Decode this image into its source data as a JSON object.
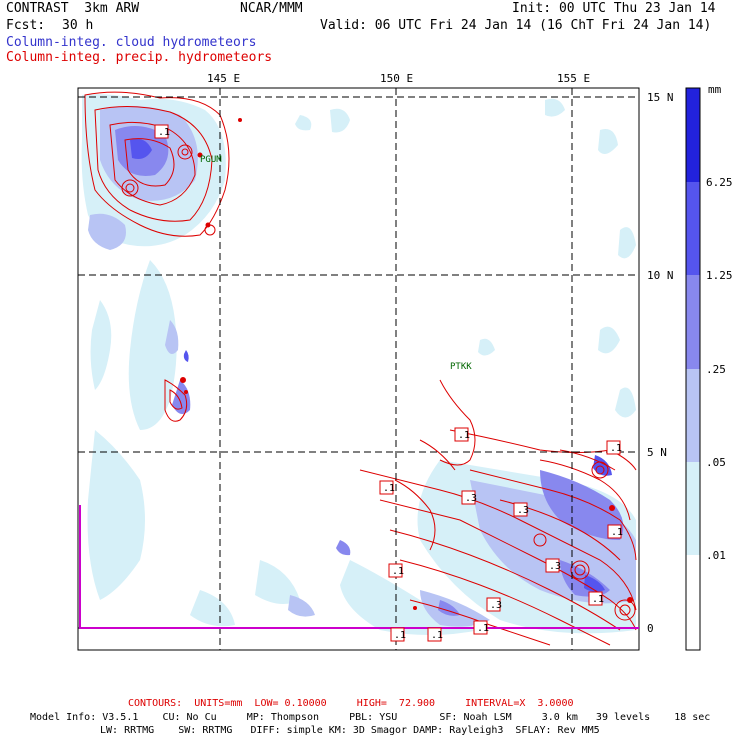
{
  "header": {
    "model": "CONTRAST  3km ARW",
    "org": "NCAR/MMM",
    "init": "Init: 00 UTC Thu 23 Jan 14",
    "fcst_label": "Fcst:",
    "fcst_value": "30 h",
    "valid": "Valid: 06 UTC Fri 24 Jan 14 (16 ChT Fri 24 Jan 14)",
    "field1": "Column-integ. cloud hydrometeors",
    "field2": "Column-integ. precip. hydrometeors"
  },
  "colors": {
    "field1": "#3333cc",
    "field2": "#dd0000",
    "grid": "#000000",
    "boundary": "#cc00cc"
  },
  "map": {
    "lon_labels": [
      "145 E",
      "150 E",
      "155 E"
    ],
    "lat_labels": [
      "15 N",
      "10 N",
      "5 N",
      "0"
    ],
    "stations": [
      "PGUM",
      "PTKK"
    ],
    "contour_labels": [
      ".1",
      ".1",
      ".1",
      ".1",
      ".1",
      ".3",
      ".3",
      ".1",
      ".3",
      ".3",
      ".1",
      ".1",
      ".1",
      ".1"
    ]
  },
  "colorbar": {
    "units": "mm",
    "levels": [
      "6.25",
      "1.25",
      ".25",
      ".05",
      ".01"
    ],
    "colors": [
      "#2222dd",
      "#5555ee",
      "#8888ee",
      "#b8c4f4",
      "#d6f0f8",
      "#ffffff"
    ]
  },
  "footer": {
    "contours": "CONTOURS:  UNITS=mm  LOW= 0.10000     HIGH=  72.900     INTERVAL=X  3.0000",
    "model_info_1": "Model Info: V3.5.1    CU: No Cu     MP: Thompson     PBL: YSU       SF: Noah LSM     3.0 km   39 levels    18 sec",
    "model_info_2": "LW: RRTMG    SW: RRTMG   DIFF: simple KM: 3D Smagor DAMP: Rayleigh3  SFLAY: Rev MM5"
  }
}
